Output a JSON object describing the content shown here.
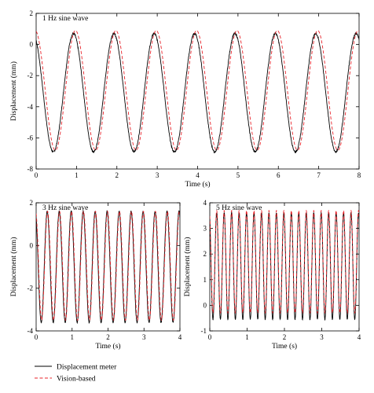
{
  "chart_data": [
    {
      "type": "line",
      "title": "1 Hz sine wave",
      "xlabel": "Time (s)",
      "ylabel": "Displacement (mm)",
      "xlim": [
        0,
        8
      ],
      "ylim": [
        -8,
        2
      ],
      "xticks": [
        0,
        1,
        2,
        3,
        4,
        5,
        6,
        7,
        8
      ],
      "yticks": [
        2,
        0,
        -2,
        -4,
        -6,
        -8
      ],
      "grid": false,
      "series": [
        {
          "name": "Displacement meter",
          "color": "#000000",
          "style": "solid",
          "frequency_hz": 1,
          "min": -6.9,
          "max": 0.7,
          "phase_s": 0.0
        },
        {
          "name": "Vision-based",
          "color": "#e8232a",
          "style": "dashed",
          "frequency_hz": 1,
          "min": -6.8,
          "max": 0.9,
          "phase_s": 0.05
        }
      ]
    },
    {
      "type": "line",
      "title": "3 Hz sine wave",
      "xlabel": "Time (s)",
      "ylabel": "Displacement (mm)",
      "xlim": [
        0,
        4
      ],
      "ylim": [
        -4,
        2
      ],
      "xticks": [
        0,
        1,
        2,
        3,
        4
      ],
      "yticks": [
        2,
        0,
        -2,
        -4
      ],
      "grid": false,
      "series": [
        {
          "name": "Displacement meter",
          "color": "#000000",
          "style": "solid",
          "frequency_hz": 3,
          "min": -3.6,
          "max": 1.6,
          "phase_s": 0.0
        },
        {
          "name": "Vision-based",
          "color": "#e8232a",
          "style": "dashed",
          "frequency_hz": 3,
          "min": -3.5,
          "max": 1.6,
          "phase_s": 0.01
        }
      ]
    },
    {
      "type": "line",
      "title": "5 Hz sine wave",
      "xlabel": "Time (s)",
      "ylabel": "Displacement (mm)",
      "xlim": [
        0,
        4
      ],
      "ylim": [
        -1,
        4
      ],
      "xticks": [
        0,
        1,
        2,
        3,
        4
      ],
      "yticks": [
        4,
        3,
        2,
        1,
        0,
        -1
      ],
      "grid": false,
      "series": [
        {
          "name": "Displacement meter",
          "color": "#000000",
          "style": "solid",
          "frequency_hz": 5,
          "min": -0.55,
          "max": 3.6,
          "phase_s": 0.0
        },
        {
          "name": "Vision-based",
          "color": "#e8232a",
          "style": "dashed",
          "frequency_hz": 5,
          "min": -0.3,
          "max": 3.7,
          "phase_s": 0.0
        }
      ]
    }
  ],
  "legend": {
    "placement": "bottom-left",
    "items": [
      {
        "label": "Displacement meter",
        "color": "#000000",
        "style": "solid"
      },
      {
        "label": "Vision-based",
        "color": "#e8232a",
        "style": "dashed"
      }
    ]
  }
}
